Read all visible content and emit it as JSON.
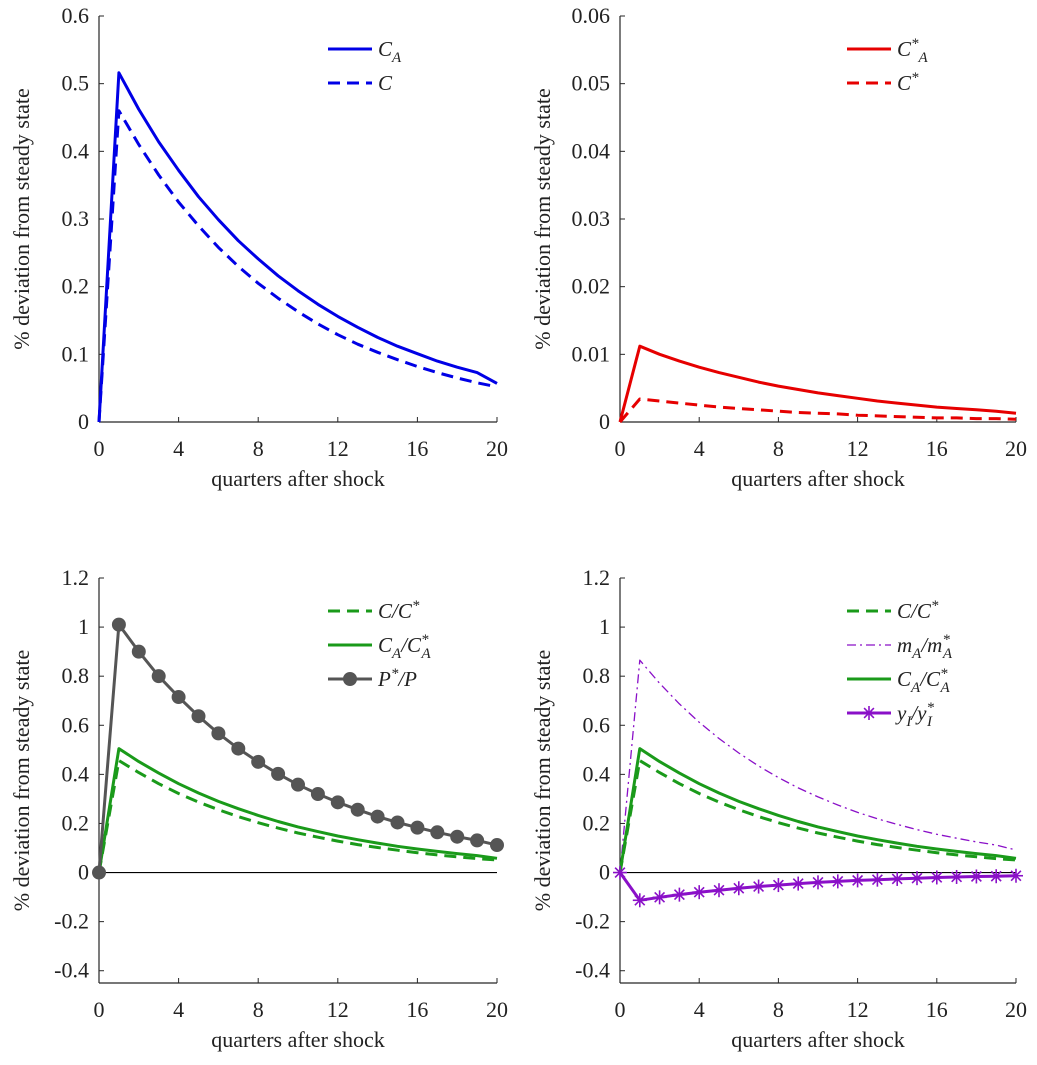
{
  "chart_data": [
    {
      "type": "line",
      "ylabel": "% deviation from steady state",
      "xlabel": "quarters after shock",
      "xlim": [
        0,
        20
      ],
      "ylim": [
        0,
        0.6
      ],
      "xticks": [
        0,
        4,
        8,
        12,
        16,
        20
      ],
      "xtick_labels": [
        "0",
        "4",
        "8",
        "12",
        "16",
        "20"
      ],
      "yticks": [
        0,
        0.1,
        0.2,
        0.3,
        0.4,
        0.5,
        0.6
      ],
      "ytick_labels": [
        "0",
        "0.1",
        "0.2",
        "0.3",
        "0.4",
        "0.5",
        "0.6"
      ],
      "legend_position": "top-right",
      "zero_line": false,
      "series": [
        {
          "name": "C_A",
          "base": "C",
          "sub": "A",
          "sup": "",
          "color": "#0000e6",
          "style": "solid",
          "x": [
            0,
            1,
            2,
            3,
            4,
            5,
            6,
            7,
            8,
            9,
            10,
            11,
            12,
            13,
            14,
            15,
            16,
            17,
            18,
            19,
            20
          ],
          "values": [
            0,
            0.516,
            0.462,
            0.414,
            0.372,
            0.333,
            0.299,
            0.268,
            0.241,
            0.216,
            0.194,
            0.174,
            0.156,
            0.14,
            0.125,
            0.112,
            0.101,
            0.09,
            0.081,
            0.073,
            0.057
          ]
        },
        {
          "name": "C",
          "base": "C",
          "sub": "",
          "sup": "",
          "color": "#0000e6",
          "style": "dashed",
          "x": [
            0,
            1,
            2,
            3,
            4,
            5,
            6,
            7,
            8,
            9,
            10,
            11,
            12,
            13,
            14,
            15,
            16,
            17,
            18,
            19,
            20
          ],
          "values": [
            0,
            0.46,
            0.41,
            0.365,
            0.325,
            0.29,
            0.258,
            0.23,
            0.205,
            0.183,
            0.163,
            0.145,
            0.129,
            0.115,
            0.103,
            0.092,
            0.082,
            0.073,
            0.065,
            0.058,
            0.052
          ]
        }
      ]
    },
    {
      "type": "line",
      "ylabel": "% deviation from steady state",
      "xlabel": "quarters after shock",
      "xlim": [
        0,
        20
      ],
      "ylim": [
        0,
        0.06
      ],
      "xticks": [
        0,
        4,
        8,
        12,
        16,
        20
      ],
      "xtick_labels": [
        "0",
        "4",
        "8",
        "12",
        "16",
        "20"
      ],
      "yticks": [
        0,
        0.01,
        0.02,
        0.03,
        0.04,
        0.05,
        0.06
      ],
      "ytick_labels": [
        "0",
        "0.01",
        "0.02",
        "0.03",
        "0.04",
        "0.05",
        "0.06"
      ],
      "legend_position": "top-right",
      "zero_line": false,
      "series": [
        {
          "name": "C*_A",
          "base": "C",
          "sub": "A",
          "sup": "*",
          "color": "#e60000",
          "style": "solid",
          "x": [
            0,
            1,
            2,
            3,
            4,
            5,
            6,
            7,
            8,
            9,
            10,
            11,
            12,
            13,
            14,
            15,
            16,
            17,
            18,
            19,
            20
          ],
          "values": [
            0,
            0.0112,
            0.01,
            0.009,
            0.0081,
            0.0073,
            0.0066,
            0.0059,
            0.0053,
            0.0048,
            0.0043,
            0.0039,
            0.0035,
            0.0031,
            0.0028,
            0.0025,
            0.0022,
            0.002,
            0.0018,
            0.0016,
            0.0013
          ]
        },
        {
          "name": "C*",
          "base": "C",
          "sub": "",
          "sup": "*",
          "color": "#e60000",
          "style": "dashed",
          "x": [
            0,
            1,
            2,
            3,
            4,
            5,
            6,
            7,
            8,
            9,
            10,
            11,
            12,
            13,
            14,
            15,
            16,
            17,
            18,
            19,
            20
          ],
          "values": [
            0,
            0.0034,
            0.0031,
            0.0028,
            0.0025,
            0.0022,
            0.002,
            0.0018,
            0.0016,
            0.0014,
            0.0013,
            0.0012,
            0.001,
            0.0009,
            0.0008,
            0.0007,
            0.0006,
            0.0006,
            0.0005,
            0.0005,
            0.0004
          ]
        }
      ]
    },
    {
      "type": "line",
      "ylabel": "% deviation from steady state",
      "xlabel": "quarters after shock",
      "xlim": [
        0,
        20
      ],
      "ylim": [
        -0.45,
        1.2
      ],
      "xticks": [
        0,
        4,
        8,
        12,
        16,
        20
      ],
      "xtick_labels": [
        "0",
        "4",
        "8",
        "12",
        "16",
        "20"
      ],
      "yticks": [
        -0.4,
        -0.2,
        0,
        0.2,
        0.4,
        0.6,
        0.8,
        1,
        1.2
      ],
      "ytick_labels": [
        "-0.4",
        "-0.2",
        "0",
        "0.2",
        "0.4",
        "0.6",
        "0.8",
        "1",
        "1.2"
      ],
      "legend_position": "top-right",
      "zero_line": true,
      "series": [
        {
          "name": "C/C*",
          "base": "C/C",
          "sub": "",
          "sup": "*",
          "color": "#1a9a1a",
          "style": "dashed",
          "x": [
            0,
            1,
            2,
            3,
            4,
            5,
            6,
            7,
            8,
            9,
            10,
            11,
            12,
            13,
            14,
            15,
            16,
            17,
            18,
            19,
            20
          ],
          "values": [
            0,
            0.456,
            0.407,
            0.362,
            0.322,
            0.287,
            0.256,
            0.228,
            0.203,
            0.181,
            0.161,
            0.144,
            0.128,
            0.114,
            0.102,
            0.091,
            0.081,
            0.072,
            0.064,
            0.057,
            0.051
          ]
        },
        {
          "name": "C_A/C*_A",
          "base": "C",
          "sub": "A",
          "base2": "/C",
          "sub2": "A",
          "sup2": "*",
          "color": "#1a9a1a",
          "style": "solid",
          "x": [
            0,
            1,
            2,
            3,
            4,
            5,
            6,
            7,
            8,
            9,
            10,
            11,
            12,
            13,
            14,
            15,
            16,
            17,
            18,
            19,
            20
          ],
          "values": [
            0,
            0.505,
            0.452,
            0.405,
            0.362,
            0.324,
            0.29,
            0.26,
            0.233,
            0.208,
            0.186,
            0.167,
            0.149,
            0.134,
            0.12,
            0.107,
            0.096,
            0.086,
            0.077,
            0.069,
            0.058
          ]
        },
        {
          "name": "P*/P",
          "base": "P",
          "sub": "",
          "sup": "*",
          "tail": "/P",
          "color": "#555555",
          "style": "solid",
          "marker": "circle",
          "x": [
            0,
            1,
            2,
            3,
            4,
            5,
            6,
            7,
            8,
            9,
            10,
            11,
            12,
            13,
            14,
            15,
            16,
            17,
            18,
            19,
            20
          ],
          "values": [
            0,
            1.01,
            0.9,
            0.8,
            0.715,
            0.637,
            0.567,
            0.505,
            0.451,
            0.402,
            0.358,
            0.32,
            0.286,
            0.256,
            0.228,
            0.204,
            0.183,
            0.164,
            0.146,
            0.131,
            0.112
          ]
        }
      ]
    },
    {
      "type": "line",
      "ylabel": "% deviation from steady state",
      "xlabel": "quarters after shock",
      "xlim": [
        0,
        20
      ],
      "ylim": [
        -0.45,
        1.2
      ],
      "xticks": [
        0,
        4,
        8,
        12,
        16,
        20
      ],
      "xtick_labels": [
        "0",
        "4",
        "8",
        "12",
        "16",
        "20"
      ],
      "yticks": [
        -0.4,
        -0.2,
        0,
        0.2,
        0.4,
        0.6,
        0.8,
        1,
        1.2
      ],
      "ytick_labels": [
        "-0.4",
        "-0.2",
        "0",
        "0.2",
        "0.4",
        "0.6",
        "0.8",
        "1",
        "1.2"
      ],
      "legend_position": "top-right",
      "zero_line": true,
      "series": [
        {
          "name": "C/C*",
          "base": "C/C",
          "sub": "",
          "sup": "*",
          "color": "#1a9a1a",
          "style": "dashed",
          "x": [
            0,
            1,
            2,
            3,
            4,
            5,
            6,
            7,
            8,
            9,
            10,
            11,
            12,
            13,
            14,
            15,
            16,
            17,
            18,
            19,
            20
          ],
          "values": [
            0,
            0.456,
            0.407,
            0.362,
            0.322,
            0.287,
            0.256,
            0.228,
            0.203,
            0.181,
            0.161,
            0.144,
            0.128,
            0.114,
            0.102,
            0.091,
            0.081,
            0.072,
            0.064,
            0.057,
            0.051
          ]
        },
        {
          "name": "m_A/m*_A",
          "base": "m",
          "sub": "A",
          "base2": "/m",
          "sub2": "A",
          "sup2": "*",
          "color": "#8a10c8",
          "style": "dashdot",
          "x": [
            0,
            1,
            2,
            3,
            4,
            5,
            6,
            7,
            8,
            9,
            10,
            11,
            12,
            13,
            14,
            15,
            16,
            17,
            18,
            19,
            20
          ],
          "values": [
            0,
            0.865,
            0.771,
            0.687,
            0.612,
            0.546,
            0.487,
            0.434,
            0.387,
            0.345,
            0.308,
            0.275,
            0.245,
            0.219,
            0.196,
            0.175,
            0.156,
            0.14,
            0.125,
            0.112,
            0.092
          ]
        },
        {
          "name": "C_A/C*_A",
          "base": "C",
          "sub": "A",
          "base2": "/C",
          "sub2": "A",
          "sup2": "*",
          "color": "#1a9a1a",
          "style": "solid",
          "x": [
            0,
            1,
            2,
            3,
            4,
            5,
            6,
            7,
            8,
            9,
            10,
            11,
            12,
            13,
            14,
            15,
            16,
            17,
            18,
            19,
            20
          ],
          "values": [
            0,
            0.505,
            0.452,
            0.405,
            0.362,
            0.324,
            0.29,
            0.26,
            0.233,
            0.208,
            0.186,
            0.167,
            0.149,
            0.134,
            0.12,
            0.107,
            0.096,
            0.086,
            0.077,
            0.069,
            0.058
          ]
        },
        {
          "name": "y_I/y*_I",
          "base": "y",
          "sub": "I",
          "base2": "/y",
          "sub2": "I",
          "sup2": "*",
          "color": "#8a10c8",
          "style": "solid",
          "marker": "asterisk",
          "x": [
            0,
            1,
            2,
            3,
            4,
            5,
            6,
            7,
            8,
            9,
            10,
            11,
            12,
            13,
            14,
            15,
            16,
            17,
            18,
            19,
            20
          ],
          "values": [
            0,
            -0.113,
            -0.101,
            -0.09,
            -0.08,
            -0.072,
            -0.064,
            -0.057,
            -0.051,
            -0.045,
            -0.04,
            -0.036,
            -0.032,
            -0.029,
            -0.026,
            -0.023,
            -0.02,
            -0.018,
            -0.016,
            -0.015,
            -0.013
          ]
        }
      ]
    }
  ]
}
